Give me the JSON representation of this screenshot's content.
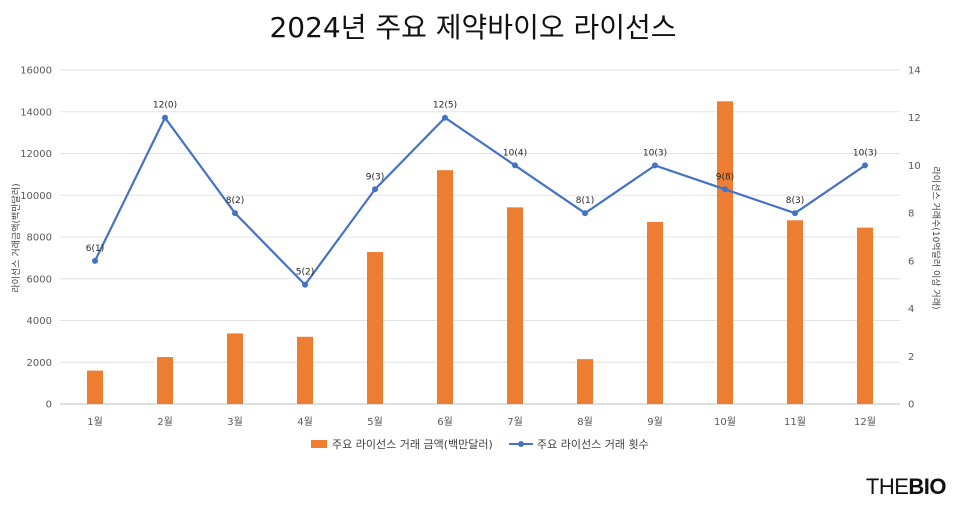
{
  "chart_data": {
    "type": "bar+line",
    "title": "2024년 주요 제약바이오 라이선스",
    "categories": [
      "1월",
      "2월",
      "3월",
      "4월",
      "5월",
      "6월",
      "7월",
      "8월",
      "9월",
      "10월",
      "11월",
      "12월"
    ],
    "y_left": {
      "label": "라이선스 거래금액(백만달러)",
      "range": [
        0,
        16000
      ],
      "ticks": [
        "0",
        "2000",
        "4000",
        "6000",
        "8000",
        "10000",
        "12000",
        "14000",
        "16000"
      ]
    },
    "y_right": {
      "label": "라이선스 거래수(10억달러 이상 거래)",
      "range": [
        0,
        14
      ],
      "ticks": [
        "0",
        "2",
        "4",
        "6",
        "8",
        "10",
        "12",
        "14"
      ]
    },
    "series": [
      {
        "name": "주요 라이선스 거래 금액(백만달러)",
        "type": "bar",
        "axis": "left",
        "color": "#ED7D31",
        "values": [
          1600,
          2250,
          3380,
          3220,
          7280,
          11200,
          9420,
          2150,
          8720,
          14500,
          8800,
          8450
        ]
      },
      {
        "name": "주요 라이선스 거래 횟수",
        "type": "line",
        "axis": "right",
        "color": "#4472C4",
        "values": [
          6,
          12,
          8,
          5,
          9,
          12,
          10,
          8,
          10,
          9,
          8,
          10
        ],
        "labels": [
          "6(1)",
          "12(0)",
          "8(2)",
          "5(2)",
          "9(3)",
          "12(5)",
          "10(4)",
          "8(1)",
          "10(3)",
          "9(8)",
          "8(3)",
          "10(3)"
        ]
      }
    ],
    "grid": true,
    "legend": "bottom"
  },
  "brand": {
    "part1": "THE",
    "part2": "BIO"
  }
}
